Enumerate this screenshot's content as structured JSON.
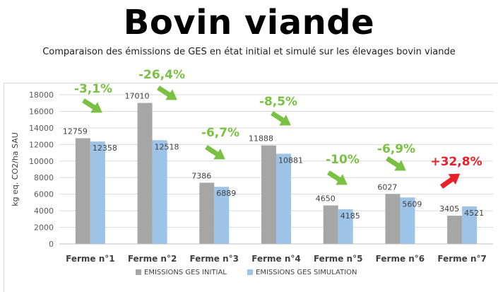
{
  "title": "Bovin viande",
  "subtitle": "Comparaison des émissions de GES en état initial et simulé sur les élevages bovin viande",
  "chart_data": {
    "type": "bar",
    "title": "",
    "xlabel": "",
    "ylabel": "kg eq. CO2/ha SAU",
    "ylim": [
      0,
      18000
    ],
    "yticks": [
      0,
      2000,
      4000,
      6000,
      8000,
      10000,
      12000,
      14000,
      16000,
      18000
    ],
    "grid": true,
    "legend_position": "bottom",
    "categories": [
      "Ferme n°1",
      "Ferme n°2",
      "Ferme n°3",
      "Ferme n°4",
      "Ferme n°5",
      "Ferme n°6",
      "Ferme n°7"
    ],
    "series": [
      {
        "name": "EMISSIONS GES INITIAL",
        "color": "#a6a6a6",
        "values": [
          12759,
          17010,
          7386,
          11888,
          4650,
          6027,
          3405
        ]
      },
      {
        "name": "EMISSIONS GES SIMULATION",
        "color": "#9dc3e6",
        "values": [
          12358,
          12518,
          6889,
          10881,
          4185,
          5609,
          4521
        ]
      }
    ],
    "annotations": [
      {
        "text": "-3,1%",
        "color": "#7ac143",
        "arrow": "down-right"
      },
      {
        "text": "-26,4%",
        "color": "#7ac143",
        "arrow": "down-right"
      },
      {
        "text": "-6,7%",
        "color": "#7ac143",
        "arrow": "down-right"
      },
      {
        "text": "-8,5%",
        "color": "#7ac143",
        "arrow": "down-right"
      },
      {
        "text": "-10%",
        "color": "#7ac143",
        "arrow": "down-right"
      },
      {
        "text": "-6,9%",
        "color": "#7ac143",
        "arrow": "down-right"
      },
      {
        "text": "+32,8%",
        "color": "#e8202a",
        "arrow": "up-right"
      }
    ]
  }
}
